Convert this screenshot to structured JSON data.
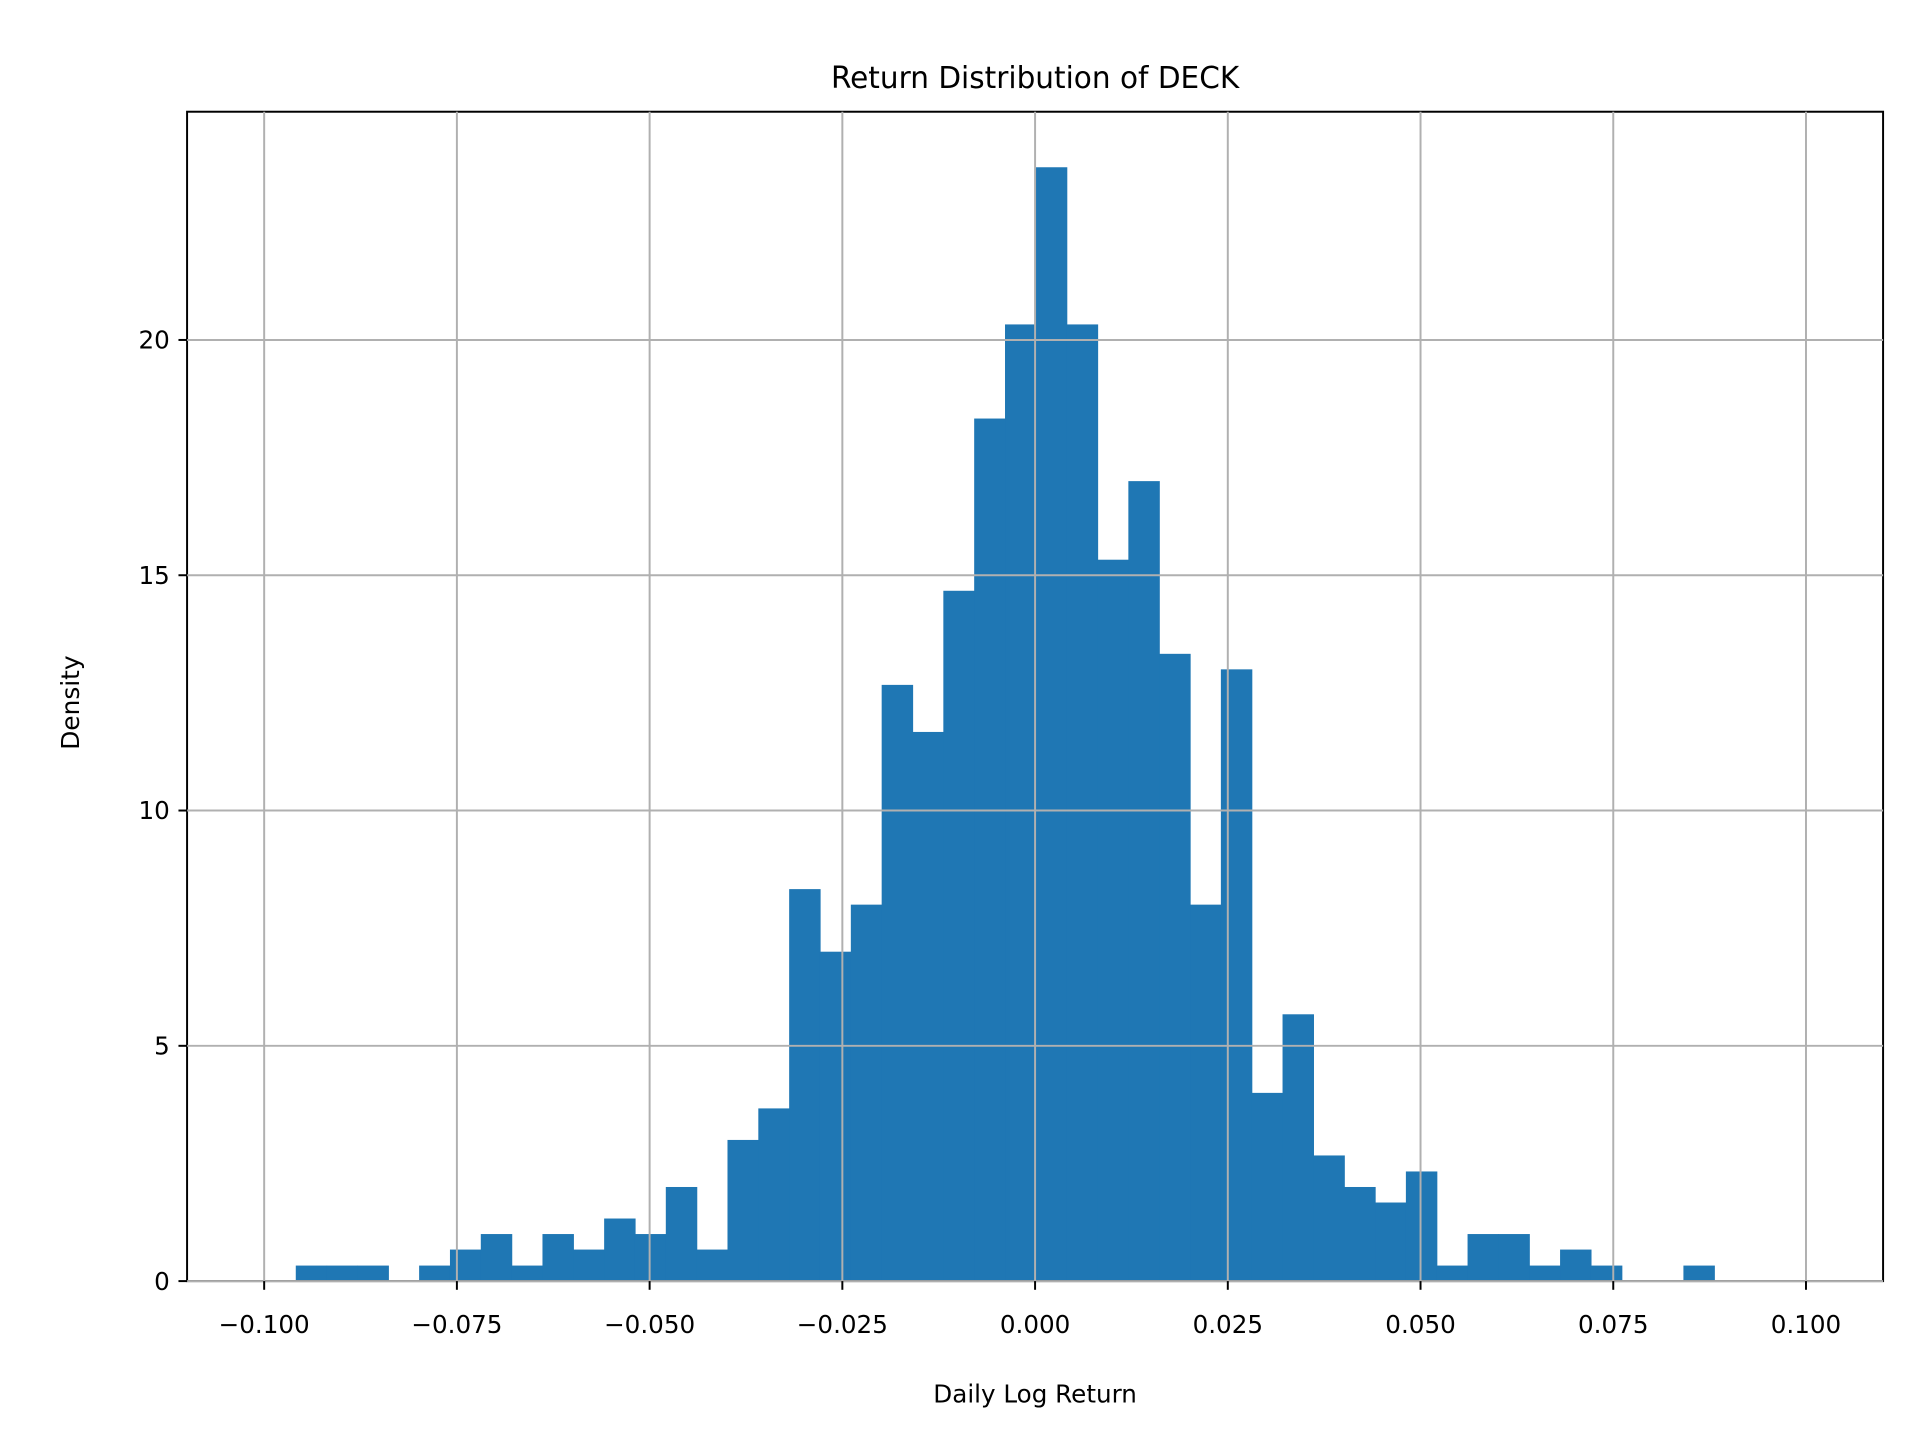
{
  "chart_data": {
    "type": "bar",
    "subtype": "histogram",
    "title": "Return Distribution of DECK",
    "xlabel": "Daily Log Return",
    "ylabel": "Density",
    "xlim": [
      -0.11,
      0.11
    ],
    "ylim": [
      0,
      24.85
    ],
    "grid": true,
    "bar_color": "#1f77b4",
    "grid_color": "#b0b0b0",
    "bin_start": -0.0959,
    "bin_width": 0.004,
    "values": [
      0.33,
      0.33,
      0.33,
      0,
      0.33,
      0.67,
      1.0,
      0.33,
      1.0,
      0.67,
      1.33,
      1.0,
      2.0,
      0.67,
      3.0,
      3.67,
      8.33,
      7.0,
      8.0,
      12.67,
      11.67,
      14.67,
      18.33,
      20.33,
      23.67,
      20.33,
      15.33,
      17.0,
      13.33,
      8.0,
      13.0,
      4.0,
      5.67,
      2.67,
      2.0,
      1.67,
      2.33,
      0.33,
      1.0,
      1.0,
      0.33,
      0.67,
      0.33,
      0,
      0,
      0.33
    ],
    "xticks": [
      -0.1,
      -0.075,
      -0.05,
      -0.025,
      0,
      0.025,
      0.05,
      0.075,
      0.1
    ],
    "xtick_labels": [
      "−0.100",
      "−0.075",
      "−0.050",
      "−0.025",
      "0.000",
      "0.025",
      "0.050",
      "0.075",
      "0.100"
    ],
    "yticks": [
      0,
      5,
      10,
      15,
      20
    ],
    "ytick_labels": [
      "0",
      "5",
      "10",
      "15",
      "20"
    ]
  }
}
